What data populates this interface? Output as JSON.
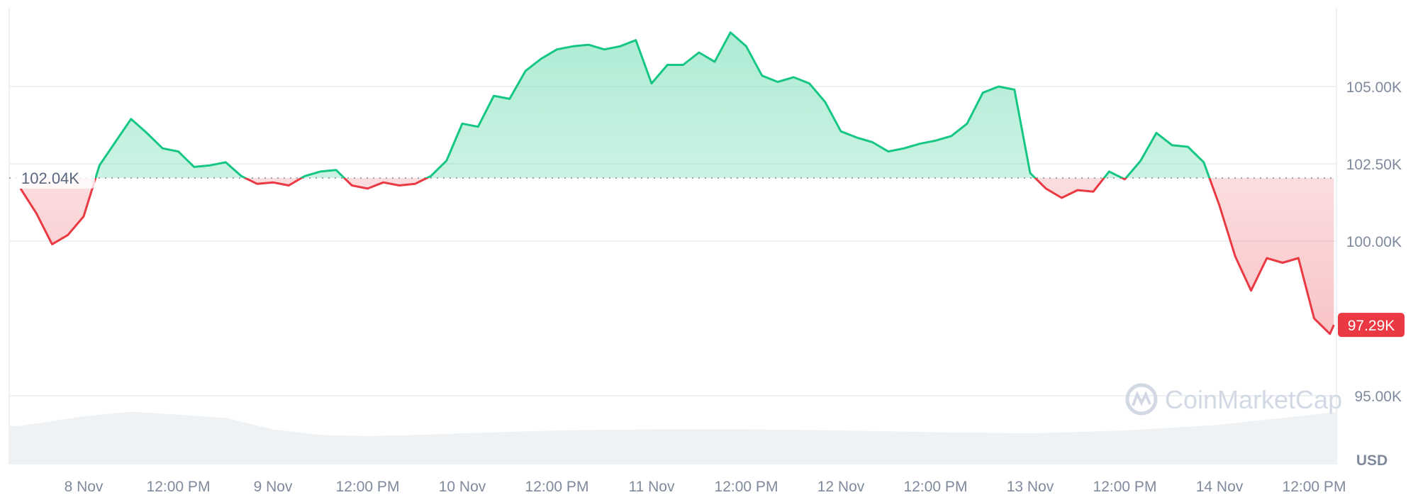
{
  "chart_data": {
    "type": "area",
    "title": "",
    "xlabel": "",
    "ylabel": "",
    "currency_label": "USD",
    "watermark": "CoinMarketCap",
    "ylim": [
      92.5,
      108.0
    ],
    "y_ticks": [
      {
        "value": 95.0,
        "label": "95.00K"
      },
      {
        "value": 100.0,
        "label": "100.00K"
      },
      {
        "value": 102.5,
        "label": "102.50K"
      },
      {
        "value": 105.0,
        "label": "105.00K"
      }
    ],
    "x_ticks": [
      {
        "time": "8 Nov 00:00",
        "label": "8 Nov"
      },
      {
        "time": "8 Nov 12:00",
        "label": "12:00 PM"
      },
      {
        "time": "9 Nov 00:00",
        "label": "9 Nov"
      },
      {
        "time": "9 Nov 12:00",
        "label": "12:00 PM"
      },
      {
        "time": "10 Nov 00:00",
        "label": "10 Nov"
      },
      {
        "time": "10 Nov 12:00",
        "label": "12:00 PM"
      },
      {
        "time": "11 Nov 00:00",
        "label": "11 Nov"
      },
      {
        "time": "11 Nov 12:00",
        "label": "12:00 PM"
      },
      {
        "time": "12 Nov 00:00",
        "label": "12 Nov"
      },
      {
        "time": "12 Nov 12:00",
        "label": "12:00 PM"
      },
      {
        "time": "13 Nov 00:00",
        "label": "13 Nov"
      },
      {
        "time": "13 Nov 12:00",
        "label": "12:00 PM"
      },
      {
        "time": "14 Nov 00:00",
        "label": "14 Nov"
      },
      {
        "time": "14 Nov 12:00",
        "label": "12:00 PM"
      }
    ],
    "grid": true,
    "baseline": {
      "value": 102.04,
      "label": "102.04K"
    },
    "current": {
      "value": 97.29,
      "label": "97.29K"
    },
    "colors": {
      "up": "#16c784",
      "down": "#ea3943",
      "grid": "#eff2f5",
      "text": "#808a9d",
      "volume": "#eff2f5"
    },
    "series": [
      {
        "unit": "thousand USD",
        "points": [
          [
            "7 Nov 16:00",
            101.7
          ],
          [
            "7 Nov 18:00",
            100.9
          ],
          [
            "7 Nov 20:00",
            99.9
          ],
          [
            "7 Nov 22:00",
            100.2
          ],
          [
            "8 Nov 00:00",
            100.8
          ],
          [
            "8 Nov 02:00",
            102.45
          ],
          [
            "8 Nov 04:00",
            103.2
          ],
          [
            "8 Nov 06:00",
            103.95
          ],
          [
            "8 Nov 08:00",
            103.5
          ],
          [
            "8 Nov 10:00",
            103.0
          ],
          [
            "8 Nov 12:00",
            102.9
          ],
          [
            "8 Nov 14:00",
            102.4
          ],
          [
            "8 Nov 16:00",
            102.45
          ],
          [
            "8 Nov 18:00",
            102.55
          ],
          [
            "8 Nov 20:00",
            102.1
          ],
          [
            "8 Nov 22:00",
            101.85
          ],
          [
            "9 Nov 00:00",
            101.9
          ],
          [
            "9 Nov 02:00",
            101.8
          ],
          [
            "9 Nov 04:00",
            102.1
          ],
          [
            "9 Nov 06:00",
            102.25
          ],
          [
            "9 Nov 08:00",
            102.3
          ],
          [
            "9 Nov 10:00",
            101.8
          ],
          [
            "9 Nov 12:00",
            101.7
          ],
          [
            "9 Nov 14:00",
            101.9
          ],
          [
            "9 Nov 16:00",
            101.8
          ],
          [
            "9 Nov 18:00",
            101.85
          ],
          [
            "9 Nov 20:00",
            102.1
          ],
          [
            "9 Nov 22:00",
            102.6
          ],
          [
            "10 Nov 00:00",
            103.8
          ],
          [
            "10 Nov 02:00",
            103.7
          ],
          [
            "10 Nov 04:00",
            104.7
          ],
          [
            "10 Nov 06:00",
            104.6
          ],
          [
            "10 Nov 08:00",
            105.5
          ],
          [
            "10 Nov 10:00",
            105.9
          ],
          [
            "10 Nov 12:00",
            106.2
          ],
          [
            "10 Nov 14:00",
            106.3
          ],
          [
            "10 Nov 16:00",
            106.35
          ],
          [
            "10 Nov 18:00",
            106.2
          ],
          [
            "10 Nov 20:00",
            106.3
          ],
          [
            "10 Nov 22:00",
            106.5
          ],
          [
            "11 Nov 00:00",
            105.1
          ],
          [
            "11 Nov 02:00",
            105.7
          ],
          [
            "11 Nov 04:00",
            105.7
          ],
          [
            "11 Nov 06:00",
            106.1
          ],
          [
            "11 Nov 08:00",
            105.8
          ],
          [
            "11 Nov 10:00",
            106.75
          ],
          [
            "11 Nov 12:00",
            106.3
          ],
          [
            "11 Nov 14:00",
            105.35
          ],
          [
            "11 Nov 16:00",
            105.15
          ],
          [
            "11 Nov 18:00",
            105.3
          ],
          [
            "11 Nov 20:00",
            105.1
          ],
          [
            "11 Nov 22:00",
            104.5
          ],
          [
            "12 Nov 00:00",
            103.55
          ],
          [
            "12 Nov 02:00",
            103.35
          ],
          [
            "12 Nov 04:00",
            103.2
          ],
          [
            "12 Nov 06:00",
            102.9
          ],
          [
            "12 Nov 08:00",
            103.0
          ],
          [
            "12 Nov 10:00",
            103.15
          ],
          [
            "12 Nov 12:00",
            103.25
          ],
          [
            "12 Nov 14:00",
            103.4
          ],
          [
            "12 Nov 16:00",
            103.8
          ],
          [
            "12 Nov 18:00",
            104.8
          ],
          [
            "12 Nov 20:00",
            105.0
          ],
          [
            "12 Nov 22:00",
            104.9
          ],
          [
            "13 Nov 00:00",
            102.2
          ],
          [
            "13 Nov 02:00",
            101.7
          ],
          [
            "13 Nov 04:00",
            101.4
          ],
          [
            "13 Nov 06:00",
            101.65
          ],
          [
            "13 Nov 08:00",
            101.6
          ],
          [
            "13 Nov 10:00",
            102.25
          ],
          [
            "13 Nov 12:00",
            102.0
          ],
          [
            "13 Nov 14:00",
            102.6
          ],
          [
            "13 Nov 16:00",
            103.5
          ],
          [
            "13 Nov 18:00",
            103.1
          ],
          [
            "13 Nov 20:00",
            103.05
          ],
          [
            "13 Nov 22:00",
            102.55
          ],
          [
            "14 Nov 00:00",
            101.15
          ],
          [
            "14 Nov 02:00",
            99.5
          ],
          [
            "14 Nov 04:00",
            98.4
          ],
          [
            "14 Nov 06:00",
            99.45
          ],
          [
            "14 Nov 08:00",
            99.3
          ],
          [
            "14 Nov 10:00",
            99.45
          ],
          [
            "14 Nov 12:00",
            97.5
          ],
          [
            "14 Nov 14:00",
            97.0
          ],
          [
            "14 Nov 14:30",
            97.29
          ]
        ]
      }
    ],
    "volume_relative": [
      [
        "7 Nov 16:00",
        0.68
      ],
      [
        "8 Nov 00:00",
        0.85
      ],
      [
        "8 Nov 06:00",
        0.93
      ],
      [
        "8 Nov 12:00",
        0.88
      ],
      [
        "8 Nov 18:00",
        0.82
      ],
      [
        "9 Nov 00:00",
        0.62
      ],
      [
        "9 Nov 06:00",
        0.52
      ],
      [
        "9 Nov 12:00",
        0.5
      ],
      [
        "9 Nov 18:00",
        0.52
      ],
      [
        "10 Nov 00:00",
        0.55
      ],
      [
        "10 Nov 12:00",
        0.6
      ],
      [
        "11 Nov 00:00",
        0.62
      ],
      [
        "11 Nov 12:00",
        0.62
      ],
      [
        "12 Nov 00:00",
        0.6
      ],
      [
        "12 Nov 12:00",
        0.57
      ],
      [
        "13 Nov 00:00",
        0.55
      ],
      [
        "13 Nov 12:00",
        0.6
      ],
      [
        "14 Nov 00:00",
        0.7
      ],
      [
        "14 Nov 14:30",
        0.92
      ]
    ]
  }
}
